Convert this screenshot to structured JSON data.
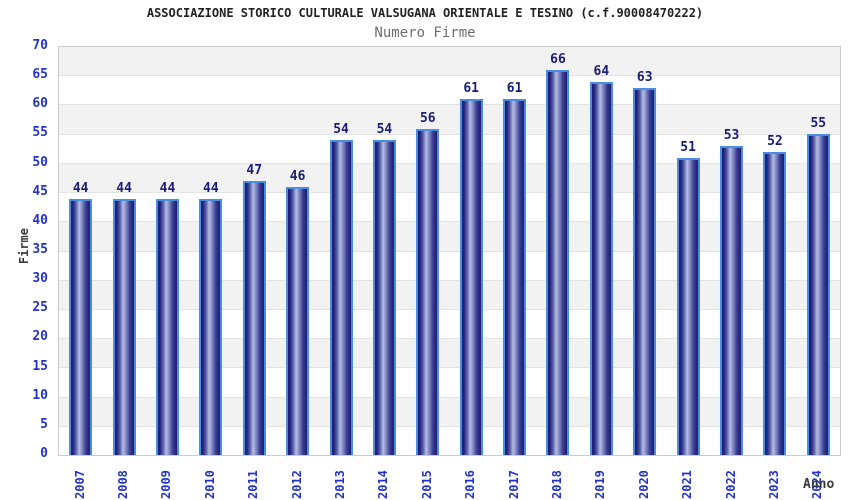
{
  "header": {
    "title": "ASSOCIAZIONE STORICO CULTURALE VALSUGANA ORIENTALE E TESINO (c.f.90008470222)",
    "subtitle": "Numero Firme"
  },
  "chart_data": {
    "type": "bar",
    "title": "ASSOCIAZIONE STORICO CULTURALE VALSUGANA ORIENTALE E TESINO (c.f.90008470222)",
    "subtitle": "Numero Firme",
    "categories": [
      "2007",
      "2008",
      "2009",
      "2010",
      "2011",
      "2012",
      "2013",
      "2014",
      "2015",
      "2016",
      "2017",
      "2018",
      "2019",
      "2020",
      "2021",
      "2022",
      "2023",
      "2024"
    ],
    "values": [
      44,
      44,
      44,
      44,
      47,
      46,
      54,
      54,
      56,
      61,
      61,
      66,
      64,
      63,
      51,
      53,
      52,
      55
    ],
    "xlabel": "Anno",
    "ylabel": "Firme",
    "ylim": [
      0,
      70
    ],
    "ytick_step": 5,
    "y_ticks": [
      0,
      5,
      10,
      15,
      20,
      25,
      30,
      35,
      40,
      45,
      50,
      55,
      60,
      65,
      70
    ],
    "grid": "horizontal-bands-alternating",
    "legend": "none",
    "colors": {
      "band_gray": "#f2f2f2",
      "band_white": "#ffffff",
      "grid_line": "#e3e3e3",
      "plot_border": "#cccccc",
      "bar_border": "#4b8ddf",
      "bar_edge_dark": "#1b1b72",
      "bar_center_light": "#b7bde2",
      "value_label": "#1b1b78",
      "tick_label": "#2233cc",
      "title_color": "#222222",
      "subtitle_color": "#6e6e6e",
      "axis_title_color": "#3a3a3a"
    }
  }
}
